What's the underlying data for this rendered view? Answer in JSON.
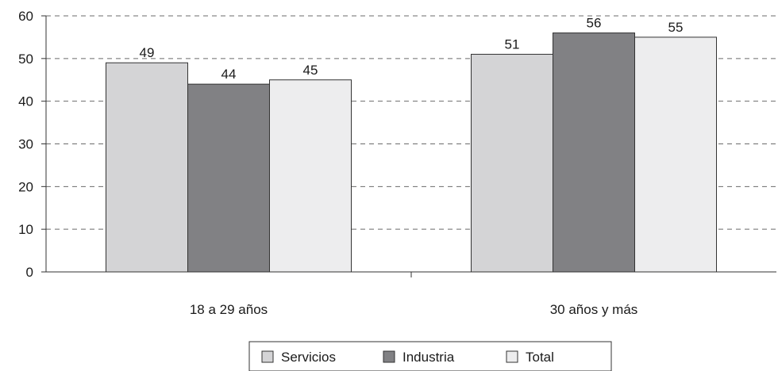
{
  "chart_data": {
    "type": "bar",
    "title": "",
    "xlabel": "",
    "ylabel": "",
    "categories": [
      "18 a 29 años",
      "30 años y más"
    ],
    "series": [
      {
        "name": "Servicios",
        "values": [
          49,
          51
        ],
        "color": "#d4d4d6"
      },
      {
        "name": "Industria",
        "values": [
          44,
          56
        ],
        "color": "#818184"
      },
      {
        "name": "Total",
        "values": [
          45,
          55
        ],
        "color": "#ededee"
      }
    ],
    "ylim": [
      0,
      60
    ],
    "yticks": [
      0,
      10,
      20,
      30,
      40,
      50,
      60
    ],
    "grid": true,
    "grid_style": "dashed",
    "legend_position": "bottom"
  }
}
